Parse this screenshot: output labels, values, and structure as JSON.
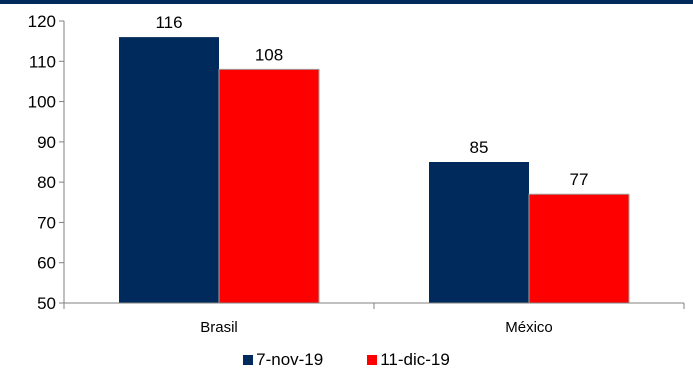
{
  "chart_data": {
    "type": "bar",
    "title": "",
    "xlabel": "",
    "ylabel": "",
    "categories": [
      "Brasil",
      "México"
    ],
    "series": [
      {
        "name": "7-nov-19",
        "values": [
          116,
          85
        ],
        "color": "#002A5C"
      },
      {
        "name": "11-dic-19",
        "values": [
          108,
          77
        ],
        "color": "#FF0000"
      }
    ],
    "ylim": [
      50,
      120
    ],
    "yticks": [
      50,
      60,
      70,
      80,
      90,
      100,
      110,
      120
    ],
    "grid": false,
    "legend": "bottom-center",
    "data_labels": true,
    "top_rule_color": "#002A5C"
  }
}
